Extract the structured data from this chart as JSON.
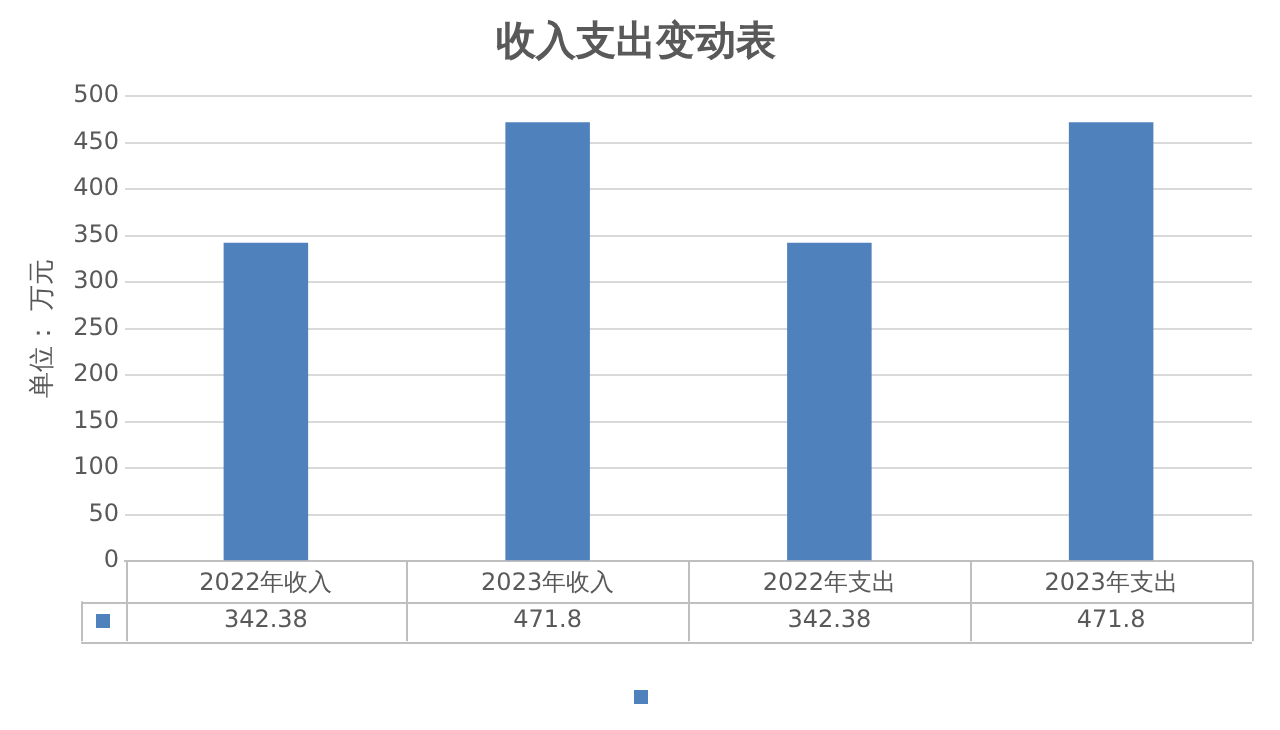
{
  "chart_data": {
    "type": "bar",
    "title": "收入支出变动表",
    "ylabel": "单位： 万元",
    "categories": [
      "2022年收入",
      "2023年收入",
      "2022年支出",
      "2023年支出"
    ],
    "series": [
      {
        "color": "#4f81bd",
        "values": [
          342.38,
          471.8,
          342.38,
          471.8
        ]
      }
    ],
    "ylim": [
      0,
      500
    ],
    "yticks": [
      0,
      50,
      100,
      150,
      200,
      250,
      300,
      350,
      400,
      450,
      500
    ],
    "grid": "y",
    "data_labels": true
  }
}
